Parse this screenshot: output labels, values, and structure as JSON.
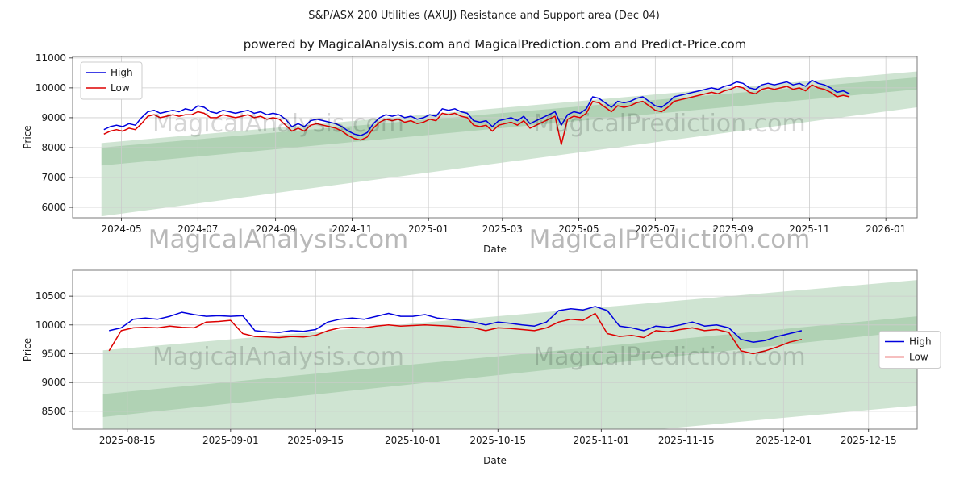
{
  "page": {
    "title": "S&P/ASX 200 Utilities (AXUJ) Resistance and Support area (Dec 04)",
    "subtitle": "powered by MagicalAnalysis.com and MagicalPrediction.com and Predict-Price.com"
  },
  "watermarks": {
    "left": "MagicalAnalysis.com",
    "right": "MagicalPrediction.com"
  },
  "colors": {
    "high": "#0000dd",
    "low": "#dd0000",
    "band": "rgba(118,178,126,0.35)",
    "grid": "#cccccc",
    "border": "#7a7a7a",
    "text": "#1a1a1a",
    "legend_border": "#cccccc",
    "legend_bg": "#ffffff"
  },
  "chart_data": [
    {
      "type": "line",
      "xlabel": "Date",
      "ylabel": "Price",
      "legend_pos": "upper-left",
      "x_range": [
        "2024-03-23",
        "2026-01-26"
      ],
      "y_range": [
        5650,
        11050
      ],
      "x_ticks": [
        {
          "date": "2024-05-01",
          "label": "2024-05"
        },
        {
          "date": "2024-07-01",
          "label": "2024-07"
        },
        {
          "date": "2024-09-01",
          "label": "2024-09"
        },
        {
          "date": "2024-11-01",
          "label": "2024-11"
        },
        {
          "date": "2025-01-01",
          "label": "2025-01"
        },
        {
          "date": "2025-03-01",
          "label": "2025-03"
        },
        {
          "date": "2025-05-01",
          "label": "2025-05"
        },
        {
          "date": "2025-07-01",
          "label": "2025-07"
        },
        {
          "date": "2025-09-01",
          "label": "2025-09"
        },
        {
          "date": "2025-11-01",
          "label": "2025-11"
        },
        {
          "date": "2026-01-01",
          "label": "2026-01"
        }
      ],
      "y_ticks": [
        6000,
        7000,
        8000,
        9000,
        10000,
        11000
      ],
      "bands": [
        {
          "x": [
            "2024-04-15",
            "2026-01-26"
          ],
          "top": [
            8150,
            10550
          ],
          "bottom": [
            7400,
            9950
          ]
        },
        {
          "x": [
            "2024-04-15",
            "2026-01-26"
          ],
          "top": [
            8000,
            10350
          ],
          "bottom": [
            5700,
            9350
          ]
        }
      ],
      "series": [
        {
          "key": "high",
          "name": "High",
          "start_date": "2024-04-17",
          "step_days": 5,
          "values": [
            8600,
            8700,
            8750,
            8700,
            8800,
            8750,
            9000,
            9200,
            9250,
            9150,
            9200,
            9250,
            9200,
            9300,
            9250,
            9400,
            9350,
            9200,
            9150,
            9250,
            9200,
            9150,
            9200,
            9250,
            9150,
            9200,
            9100,
            9150,
            9100,
            8950,
            8700,
            8800,
            8700,
            8900,
            8950,
            8900,
            8850,
            8800,
            8700,
            8550,
            8450,
            8400,
            8500,
            8800,
            9000,
            9100,
            9050,
            9100,
            9000,
            9050,
            8950,
            9000,
            9100,
            9050,
            9300,
            9250,
            9300,
            9200,
            9150,
            8900,
            8850,
            8900,
            8700,
            8900,
            8950,
            9000,
            8900,
            9050,
            8800,
            8900,
            9000,
            9100,
            9200,
            8750,
            9100,
            9200,
            9150,
            9300,
            9700,
            9650,
            9500,
            9350,
            9550,
            9500,
            9550,
            9650,
            9700,
            9550,
            9400,
            9350,
            9500,
            9700,
            9750,
            9800,
            9850,
            9900,
            9950,
            10000,
            9950,
            10050,
            10100,
            10200,
            10150,
            10000,
            9950,
            10100,
            10150,
            10100,
            10150,
            10200,
            10100,
            10150,
            10050,
            10250,
            10150,
            10100,
            10000,
            9850,
            9900,
            9800
          ]
        },
        {
          "key": "low",
          "name": "Low",
          "start_date": "2024-04-17",
          "step_days": 5,
          "values": [
            8450,
            8550,
            8600,
            8550,
            8650,
            8600,
            8800,
            9050,
            9100,
            9000,
            9050,
            9100,
            9050,
            9100,
            9100,
            9200,
            9150,
            9000,
            9000,
            9100,
            9050,
            9000,
            9050,
            9100,
            9000,
            9050,
            8950,
            9000,
            8950,
            8750,
            8550,
            8650,
            8550,
            8750,
            8800,
            8750,
            8700,
            8650,
            8550,
            8400,
            8300,
            8250,
            8350,
            8650,
            8850,
            8950,
            8900,
            8950,
            8850,
            8900,
            8800,
            8850,
            8950,
            8900,
            9150,
            9100,
            9150,
            9050,
            9000,
            8750,
            8700,
            8750,
            8550,
            8750,
            8800,
            8850,
            8750,
            8900,
            8650,
            8750,
            8850,
            8950,
            9050,
            8100,
            8950,
            9050,
            9000,
            9150,
            9550,
            9500,
            9350,
            9200,
            9400,
            9350,
            9400,
            9500,
            9550,
            9400,
            9250,
            9200,
            9350,
            9550,
            9600,
            9650,
            9700,
            9750,
            9800,
            9850,
            9800,
            9900,
            9950,
            10050,
            10000,
            9850,
            9800,
            9950,
            10000,
            9950,
            10000,
            10050,
            9950,
            10000,
            9900,
            10100,
            10000,
            9950,
            9850,
            9700,
            9750,
            9700
          ]
        }
      ]
    },
    {
      "type": "line",
      "xlabel": "Date",
      "ylabel": "Price",
      "legend_pos": "center-right",
      "x_range": [
        "2025-08-06",
        "2025-12-23"
      ],
      "y_range": [
        8190,
        10950
      ],
      "x_ticks": [
        {
          "date": "2025-08-15",
          "label": "2025-08-15"
        },
        {
          "date": "2025-09-01",
          "label": "2025-09-01"
        },
        {
          "date": "2025-09-15",
          "label": "2025-09-15"
        },
        {
          "date": "2025-10-01",
          "label": "2025-10-01"
        },
        {
          "date": "2025-10-15",
          "label": "2025-10-15"
        },
        {
          "date": "2025-11-01",
          "label": "2025-11-01"
        },
        {
          "date": "2025-11-15",
          "label": "2025-11-15"
        },
        {
          "date": "2025-12-01",
          "label": "2025-12-01"
        },
        {
          "date": "2025-12-15",
          "label": "2025-12-15"
        }
      ],
      "y_ticks": [
        8500,
        9000,
        9500,
        10000,
        10500
      ],
      "bands": [
        {
          "x": [
            "2025-08-11",
            "2025-12-23"
          ],
          "top": [
            9560,
            10780
          ],
          "bottom": [
            8400,
            9900
          ]
        },
        {
          "x": [
            "2025-08-11",
            "2025-12-23"
          ],
          "top": [
            8800,
            10150
          ],
          "bottom": [
            7300,
            8600
          ]
        }
      ],
      "series": [
        {
          "key": "high",
          "name": "High",
          "start_date": "2025-08-12",
          "step_days": 2,
          "values": [
            9900,
            9950,
            10100,
            10120,
            10100,
            10150,
            10220,
            10180,
            10150,
            10160,
            10150,
            10160,
            9900,
            9880,
            9870,
            9900,
            9890,
            9920,
            10050,
            10100,
            10120,
            10100,
            10150,
            10200,
            10150,
            10150,
            10180,
            10120,
            10100,
            10080,
            10050,
            10000,
            10050,
            10030,
            10000,
            9980,
            10050,
            10250,
            10280,
            10260,
            10320,
            10250,
            9980,
            9950,
            9900,
            9980,
            9960,
            10000,
            10050,
            9980,
            10000,
            9950,
            9750,
            9700,
            9730,
            9800,
            9850,
            9900
          ]
        },
        {
          "key": "low",
          "name": "Low",
          "start_date": "2025-08-12",
          "step_days": 2,
          "values": [
            9550,
            9900,
            9950,
            9960,
            9950,
            9980,
            9960,
            9950,
            10050,
            10060,
            10080,
            9850,
            9800,
            9790,
            9780,
            9800,
            9790,
            9820,
            9900,
            9950,
            9960,
            9950,
            9980,
            10000,
            9980,
            9990,
            10000,
            9990,
            9980,
            9960,
            9950,
            9900,
            9950,
            9940,
            9920,
            9900,
            9950,
            10050,
            10100,
            10080,
            10200,
            9850,
            9800,
            9820,
            9780,
            9900,
            9880,
            9920,
            9950,
            9900,
            9920,
            9870,
            9550,
            9500,
            9550,
            9620,
            9700,
            9750
          ]
        }
      ]
    }
  ]
}
